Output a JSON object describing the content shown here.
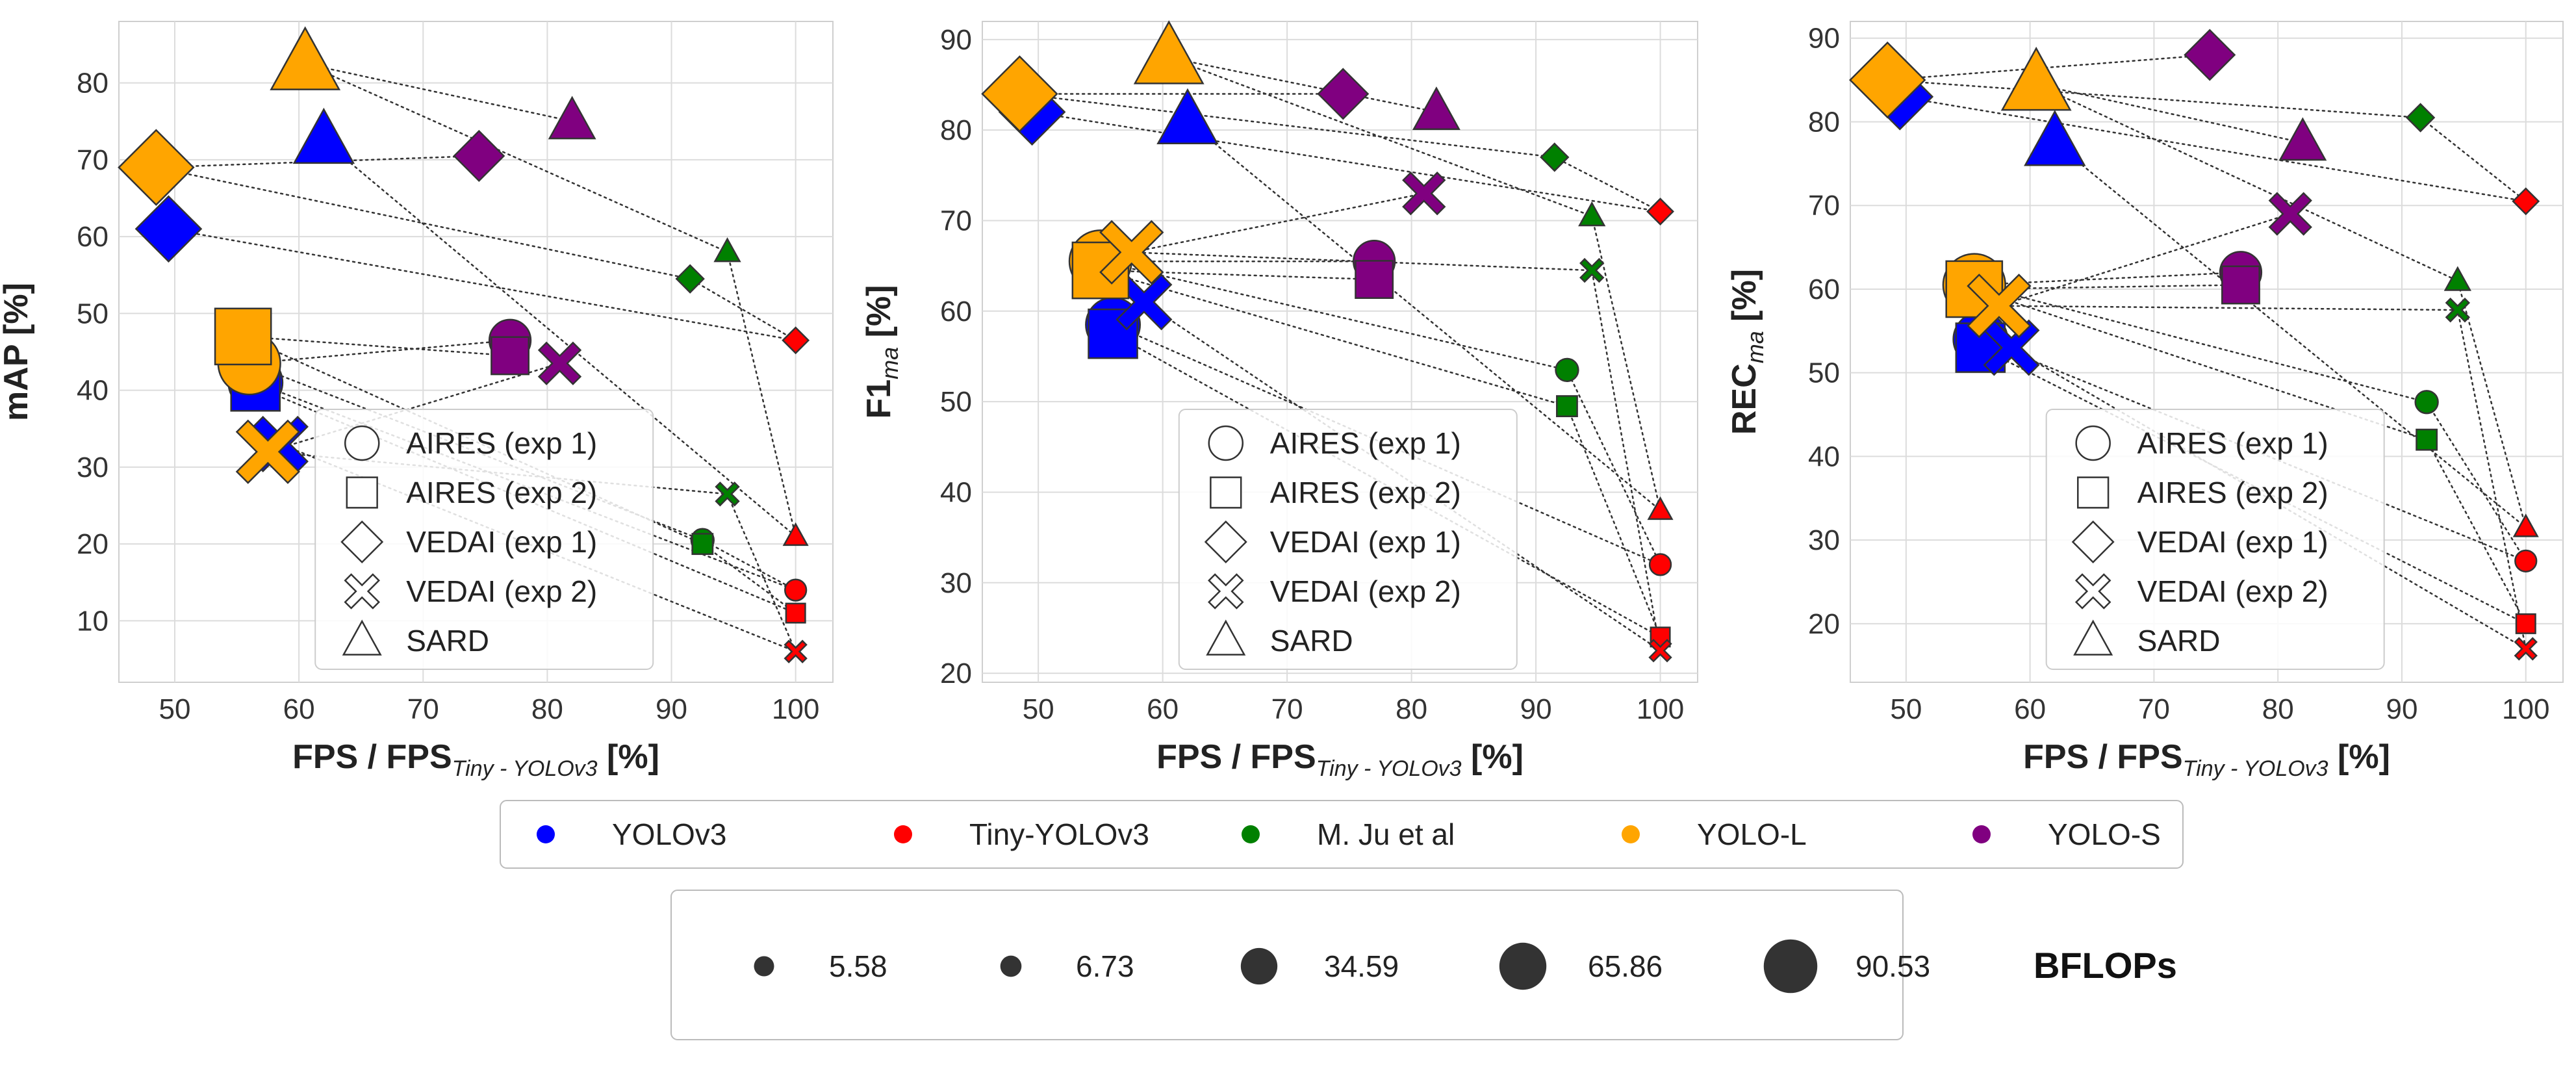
{
  "colors": {
    "YOLOv3": "#0000ff",
    "Tiny-YOLOv3": "#ff0000",
    "M. Ju et al": "#008000",
    "YOLO-L": "#ffa500",
    "YOLO-S": "#800080"
  },
  "model_order": [
    "YOLOv3",
    "Tiny-YOLOv3",
    "M. Ju et al",
    "YOLO-L",
    "YOLO-S"
  ],
  "model_marker_size": {
    "YOLOv3": 65.86,
    "Tiny-YOLOv3": 5.58,
    "M. Ju et al": 6.73,
    "YOLO-L": 90.53,
    "YOLO-S": 34.59
  },
  "shape_legend": [
    {
      "shape": "circle",
      "label": "AIRES (exp 1)"
    },
    {
      "shape": "square",
      "label": "AIRES (exp 2)"
    },
    {
      "shape": "diamond",
      "label": "VEDAI (exp 1)"
    },
    {
      "shape": "x",
      "label": "VEDAI (exp 2)"
    },
    {
      "shape": "triangle",
      "label": "SARD"
    }
  ],
  "color_legend": [
    "YOLOv3",
    "Tiny-YOLOv3",
    "M. Ju et al",
    "YOLO-L",
    "YOLO-S"
  ],
  "size_legend": {
    "title": "BFLOPs",
    "values": [
      5.58,
      6.73,
      34.59,
      65.86,
      90.53
    ],
    "labels": [
      "5.58",
      "6.73",
      "34.59",
      "65.86",
      "90.53"
    ]
  },
  "chart_data": [
    {
      "type": "scatter",
      "ylabel": "mAP [%]",
      "ylabel_main": "mAP",
      "ylabel_sub": "",
      "ylabel_tail": " [%]",
      "xlabel_main": "FPS / FPS",
      "xlabel_sub": "Tiny - YOLOv3",
      "xlabel_tail": " [%]",
      "xlim": [
        45.5,
        103
      ],
      "ylim": [
        2,
        88
      ],
      "xticks": [
        50,
        60,
        70,
        80,
        90,
        100
      ],
      "yticks": [
        10,
        20,
        30,
        40,
        50,
        60,
        70,
        80
      ],
      "datasets": [
        {
          "name": "AIRES (exp 1)",
          "shape": "circle",
          "points": [
            {
              "model": "YOLO-L",
              "x": 56,
              "y": 43.5
            },
            {
              "model": "YOLOv3",
              "x": 56.5,
              "y": 41
            },
            {
              "model": "YOLO-S",
              "x": 77,
              "y": 46.5
            },
            {
              "model": "M. Ju et al",
              "x": 92.5,
              "y": 20.5
            },
            {
              "model": "Tiny-YOLOv3",
              "x": 100,
              "y": 14
            }
          ]
        },
        {
          "name": "AIRES (exp 2)",
          "shape": "square",
          "points": [
            {
              "model": "YOLO-L",
              "x": 55.5,
              "y": 47
            },
            {
              "model": "YOLOv3",
              "x": 56.5,
              "y": 40.5
            },
            {
              "model": "YOLO-S",
              "x": 77,
              "y": 44.5
            },
            {
              "model": "M. Ju et al",
              "x": 92.5,
              "y": 20
            },
            {
              "model": "Tiny-YOLOv3",
              "x": 100,
              "y": 11
            }
          ]
        },
        {
          "name": "VEDAI (exp 1)",
          "shape": "diamond",
          "points": [
            {
              "model": "YOLO-L",
              "x": 48.5,
              "y": 69
            },
            {
              "model": "YOLOv3",
              "x": 49.5,
              "y": 61
            },
            {
              "model": "YOLO-S",
              "x": 74.5,
              "y": 70.5
            },
            {
              "model": "M. Ju et al",
              "x": 91.5,
              "y": 54.5
            },
            {
              "model": "Tiny-YOLOv3",
              "x": 100,
              "y": 46.5
            }
          ]
        },
        {
          "name": "VEDAI (exp 2)",
          "shape": "x",
          "points": [
            {
              "model": "YOLO-L",
              "x": 57.5,
              "y": 32
            },
            {
              "model": "YOLOv3",
              "x": 58.5,
              "y": 33
            },
            {
              "model": "YOLO-S",
              "x": 81,
              "y": 43.5
            },
            {
              "model": "M. Ju et al",
              "x": 94.5,
              "y": 26.5
            },
            {
              "model": "Tiny-YOLOv3",
              "x": 100,
              "y": 6
            }
          ]
        },
        {
          "name": "SARD",
          "shape": "triangle",
          "points": [
            {
              "model": "YOLO-L",
              "x": 60.5,
              "y": 82.5
            },
            {
              "model": "YOLOv3",
              "x": 62,
              "y": 72.5
            },
            {
              "model": "YOLO-S",
              "x": 82,
              "y": 75
            },
            {
              "model": "M. Ju et al",
              "x": 94.5,
              "y": 58
            },
            {
              "model": "Tiny-YOLOv3",
              "x": 100,
              "y": 21
            }
          ]
        }
      ]
    },
    {
      "type": "scatter",
      "ylabel": "F1_ma [%]",
      "ylabel_main": "F1",
      "ylabel_sub": "ma",
      "ylabel_tail": " [%]",
      "xlabel_main": "FPS / FPS",
      "xlabel_sub": "Tiny - YOLOv3",
      "xlabel_tail": " [%]",
      "xlim": [
        45.5,
        103
      ],
      "ylim": [
        19,
        92
      ],
      "xticks": [
        50,
        60,
        70,
        80,
        90,
        100
      ],
      "yticks": [
        20,
        30,
        40,
        50,
        60,
        70,
        80,
        90
      ],
      "datasets": [
        {
          "name": "AIRES (exp 1)",
          "shape": "circle",
          "points": [
            {
              "model": "YOLO-L",
              "x": 55,
              "y": 65.5
            },
            {
              "model": "YOLOv3",
              "x": 56,
              "y": 58.5
            },
            {
              "model": "YOLO-S",
              "x": 77,
              "y": 65.5
            },
            {
              "model": "M. Ju et al",
              "x": 92.5,
              "y": 53.5
            },
            {
              "model": "Tiny-YOLOv3",
              "x": 100,
              "y": 32
            }
          ]
        },
        {
          "name": "AIRES (exp 2)",
          "shape": "square",
          "points": [
            {
              "model": "YOLO-L",
              "x": 55,
              "y": 64.5
            },
            {
              "model": "YOLOv3",
              "x": 56,
              "y": 57.5
            },
            {
              "model": "YOLO-S",
              "x": 77,
              "y": 63.5
            },
            {
              "model": "M. Ju et al",
              "x": 92.5,
              "y": 49.5
            },
            {
              "model": "Tiny-YOLOv3",
              "x": 100,
              "y": 24
            }
          ]
        },
        {
          "name": "VEDAI (exp 1)",
          "shape": "diamond",
          "points": [
            {
              "model": "YOLO-L",
              "x": 48.5,
              "y": 84
            },
            {
              "model": "YOLOv3",
              "x": 49.5,
              "y": 82
            },
            {
              "model": "YOLO-S",
              "x": 74.5,
              "y": 84
            },
            {
              "model": "M. Ju et al",
              "x": 91.5,
              "y": 77
            },
            {
              "model": "Tiny-YOLOv3",
              "x": 100,
              "y": 71
            }
          ]
        },
        {
          "name": "VEDAI (exp 2)",
          "shape": "x",
          "points": [
            {
              "model": "YOLO-L",
              "x": 57.5,
              "y": 66.5
            },
            {
              "model": "YOLOv3",
              "x": 58.5,
              "y": 61
            },
            {
              "model": "YOLO-S",
              "x": 81,
              "y": 73
            },
            {
              "model": "M. Ju et al",
              "x": 94.5,
              "y": 64.5
            },
            {
              "model": "Tiny-YOLOv3",
              "x": 100,
              "y": 22.5
            }
          ]
        },
        {
          "name": "SARD",
          "shape": "triangle",
          "points": [
            {
              "model": "YOLO-L",
              "x": 60.5,
              "y": 88
            },
            {
              "model": "YOLOv3",
              "x": 62,
              "y": 81
            },
            {
              "model": "YOLO-S",
              "x": 82,
              "y": 82
            },
            {
              "model": "M. Ju et al",
              "x": 94.5,
              "y": 70.5
            },
            {
              "model": "Tiny-YOLOv3",
              "x": 100,
              "y": 38
            }
          ]
        }
      ]
    },
    {
      "type": "scatter",
      "ylabel": "REC_ma [%]",
      "ylabel_main": "REC",
      "ylabel_sub": "ma",
      "ylabel_tail": " [%]",
      "xlabel_main": "FPS / FPS",
      "xlabel_sub": "Tiny - YOLOv3",
      "xlabel_tail": " [%]",
      "xlim": [
        45.5,
        103
      ],
      "ylim": [
        13,
        92
      ],
      "xticks": [
        50,
        60,
        70,
        80,
        90,
        100
      ],
      "yticks": [
        20,
        30,
        40,
        50,
        60,
        70,
        80,
        90
      ],
      "datasets": [
        {
          "name": "AIRES (exp 1)",
          "shape": "circle",
          "points": [
            {
              "model": "YOLO-L",
              "x": 55.5,
              "y": 60.5
            },
            {
              "model": "YOLOv3",
              "x": 56,
              "y": 54
            },
            {
              "model": "YOLO-S",
              "x": 77,
              "y": 62
            },
            {
              "model": "M. Ju et al",
              "x": 92,
              "y": 46.5
            },
            {
              "model": "Tiny-YOLOv3",
              "x": 100,
              "y": 27.5
            }
          ]
        },
        {
          "name": "AIRES (exp 2)",
          "shape": "square",
          "points": [
            {
              "model": "YOLO-L",
              "x": 55.5,
              "y": 60
            },
            {
              "model": "YOLOv3",
              "x": 56,
              "y": 53
            },
            {
              "model": "YOLO-S",
              "x": 77,
              "y": 60.5
            },
            {
              "model": "M. Ju et al",
              "x": 92,
              "y": 42
            },
            {
              "model": "Tiny-YOLOv3",
              "x": 100,
              "y": 20
            }
          ]
        },
        {
          "name": "VEDAI (exp 1)",
          "shape": "diamond",
          "points": [
            {
              "model": "YOLO-L",
              "x": 48.5,
              "y": 85
            },
            {
              "model": "YOLOv3",
              "x": 49.5,
              "y": 83
            },
            {
              "model": "YOLO-S",
              "x": 74.5,
              "y": 88
            },
            {
              "model": "M. Ju et al",
              "x": 91.5,
              "y": 80.5
            },
            {
              "model": "Tiny-YOLOv3",
              "x": 100,
              "y": 70.5
            }
          ]
        },
        {
          "name": "VEDAI (exp 2)",
          "shape": "x",
          "points": [
            {
              "model": "YOLO-L",
              "x": 57.5,
              "y": 58
            },
            {
              "model": "YOLOv3",
              "x": 58.5,
              "y": 53
            },
            {
              "model": "YOLO-S",
              "x": 81,
              "y": 69
            },
            {
              "model": "M. Ju et al",
              "x": 94.5,
              "y": 57.5
            },
            {
              "model": "Tiny-YOLOv3",
              "x": 100,
              "y": 17
            }
          ]
        },
        {
          "name": "SARD",
          "shape": "triangle",
          "points": [
            {
              "model": "YOLO-L",
              "x": 60.5,
              "y": 84.5
            },
            {
              "model": "YOLOv3",
              "x": 62,
              "y": 77.5
            },
            {
              "model": "YOLO-S",
              "x": 82,
              "y": 77.5
            },
            {
              "model": "M. Ju et al",
              "x": 94.5,
              "y": 61
            },
            {
              "model": "Tiny-YOLOv3",
              "x": 100,
              "y": 31.5
            }
          ]
        }
      ]
    }
  ]
}
